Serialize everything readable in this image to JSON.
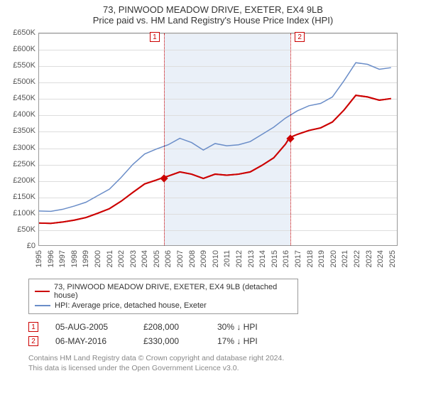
{
  "title": "73, PINWOOD MEADOW DRIVE, EXETER, EX4 9LB",
  "subtitle": "Price paid vs. HM Land Registry's House Price Index (HPI)",
  "chart": {
    "type": "line",
    "background_color": "#ffffff",
    "grid_color": "#dddddd",
    "border_color": "#999999",
    "shade_color": "#eaf0f8",
    "ylim": [
      0,
      650000
    ],
    "ytick_step": 50000,
    "yticks": [
      "£0",
      "£50K",
      "£100K",
      "£150K",
      "£200K",
      "£250K",
      "£300K",
      "£350K",
      "£400K",
      "£450K",
      "£500K",
      "£550K",
      "£600K",
      "£650K"
    ],
    "x_start": 1995,
    "x_end": 2025.5,
    "xticks": [
      "1995",
      "1996",
      "1997",
      "1998",
      "1999",
      "2000",
      "2001",
      "2002",
      "2003",
      "2004",
      "2005",
      "2006",
      "2007",
      "2008",
      "2009",
      "2010",
      "2011",
      "2012",
      "2013",
      "2014",
      "2015",
      "2016",
      "2017",
      "2018",
      "2019",
      "2020",
      "2021",
      "2022",
      "2023",
      "2024",
      "2025"
    ],
    "shade_from": 2005.6,
    "shade_to": 2016.35,
    "markers": [
      {
        "label": "1",
        "x": 2005.6,
        "box_side": "left"
      },
      {
        "label": "2",
        "x": 2016.35,
        "box_side": "right"
      }
    ],
    "series": [
      {
        "name": "property",
        "label": "73, PINWOOD MEADOW DRIVE, EXETER, EX4 9LB (detached house)",
        "color": "#cc0000",
        "line_width": 2,
        "data": [
          [
            1995,
            68000
          ],
          [
            1996,
            67000
          ],
          [
            1997,
            71000
          ],
          [
            1998,
            77000
          ],
          [
            1999,
            85000
          ],
          [
            2000,
            98000
          ],
          [
            2001,
            112000
          ],
          [
            2002,
            135000
          ],
          [
            2003,
            162000
          ],
          [
            2004,
            188000
          ],
          [
            2005,
            200000
          ],
          [
            2005.6,
            208000
          ],
          [
            2006,
            212000
          ],
          [
            2007,
            225000
          ],
          [
            2008,
            218000
          ],
          [
            2009,
            205000
          ],
          [
            2010,
            218000
          ],
          [
            2011,
            215000
          ],
          [
            2012,
            218000
          ],
          [
            2013,
            225000
          ],
          [
            2014,
            245000
          ],
          [
            2015,
            268000
          ],
          [
            2016,
            310000
          ],
          [
            2016.35,
            330000
          ],
          [
            2017,
            340000
          ],
          [
            2018,
            352000
          ],
          [
            2019,
            360000
          ],
          [
            2020,
            378000
          ],
          [
            2021,
            415000
          ],
          [
            2022,
            460000
          ],
          [
            2023,
            455000
          ],
          [
            2024,
            445000
          ],
          [
            2025,
            450000
          ]
        ],
        "sale_points": [
          {
            "x": 2005.6,
            "y": 208000
          },
          {
            "x": 2016.35,
            "y": 330000
          }
        ]
      },
      {
        "name": "hpi",
        "label": "HPI: Average price, detached house, Exeter",
        "color": "#6a8dc8",
        "line_width": 1.5,
        "data": [
          [
            1995,
            105000
          ],
          [
            1996,
            104000
          ],
          [
            1997,
            110000
          ],
          [
            1998,
            120000
          ],
          [
            1999,
            132000
          ],
          [
            2000,
            152000
          ],
          [
            2001,
            172000
          ],
          [
            2002,
            208000
          ],
          [
            2003,
            248000
          ],
          [
            2004,
            280000
          ],
          [
            2005,
            295000
          ],
          [
            2006,
            308000
          ],
          [
            2007,
            328000
          ],
          [
            2008,
            315000
          ],
          [
            2009,
            292000
          ],
          [
            2010,
            312000
          ],
          [
            2011,
            305000
          ],
          [
            2012,
            308000
          ],
          [
            2013,
            318000
          ],
          [
            2014,
            340000
          ],
          [
            2015,
            362000
          ],
          [
            2016,
            390000
          ],
          [
            2017,
            412000
          ],
          [
            2018,
            428000
          ],
          [
            2019,
            435000
          ],
          [
            2020,
            455000
          ],
          [
            2021,
            505000
          ],
          [
            2022,
            560000
          ],
          [
            2023,
            555000
          ],
          [
            2024,
            540000
          ],
          [
            2025,
            545000
          ]
        ]
      }
    ]
  },
  "legend": {
    "border_color": "#999999",
    "items": [
      {
        "color": "#cc0000",
        "label": "73, PINWOOD MEADOW DRIVE, EXETER, EX4 9LB (detached house)"
      },
      {
        "color": "#6a8dc8",
        "label": "HPI: Average price, detached house, Exeter"
      }
    ]
  },
  "sales": [
    {
      "label": "1",
      "date": "05-AUG-2005",
      "price": "£208,000",
      "hpi": "30% ↓ HPI"
    },
    {
      "label": "2",
      "date": "06-MAY-2016",
      "price": "£330,000",
      "hpi": "17% ↓ HPI"
    }
  ],
  "footer": {
    "line1": "Contains HM Land Registry data © Crown copyright and database right 2024.",
    "line2": "This data is licensed under the Open Government Licence v3.0."
  },
  "colors": {
    "text": "#333333",
    "muted": "#888888",
    "marker": "#cc0000"
  }
}
